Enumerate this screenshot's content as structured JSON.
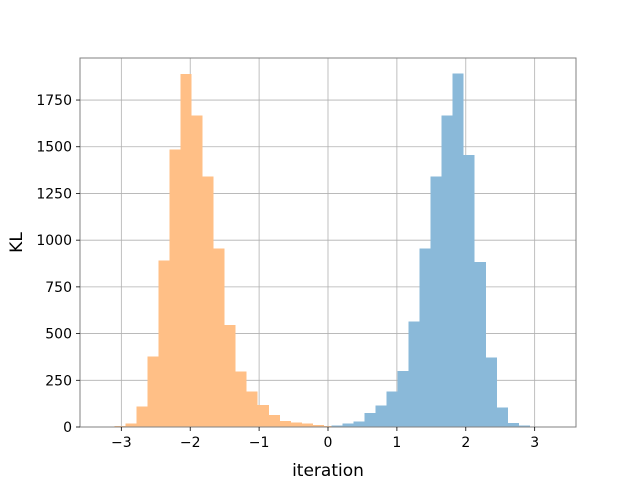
{
  "chart_data": {
    "type": "histogram",
    "title": "",
    "xlabel": "iteration",
    "ylabel": "KL",
    "xlim": [
      -3.6,
      3.6
    ],
    "ylim": [
      0,
      1975
    ],
    "xticks": [
      -3,
      -2,
      -1,
      0,
      1,
      2,
      3
    ],
    "xtick_labels": [
      "−3",
      "−2",
      "−1",
      "0",
      "1",
      "2",
      "3"
    ],
    "yticks": [
      0,
      250,
      500,
      750,
      1000,
      1250,
      1500,
      1750
    ],
    "ytick_labels": [
      "0",
      "250",
      "500",
      "750",
      "1000",
      "1250",
      "1500",
      "1750"
    ],
    "grid": true,
    "legend": "none",
    "series": [
      {
        "color": "#ffbf86",
        "bins": [
          {
            "x0": -3.1,
            "x1": -2.94,
            "count": 5
          },
          {
            "x0": -2.94,
            "x1": -2.78,
            "count": 18
          },
          {
            "x0": -2.78,
            "x1": -2.62,
            "count": 110
          },
          {
            "x0": -2.62,
            "x1": -2.46,
            "count": 378
          },
          {
            "x0": -2.46,
            "x1": -2.3,
            "count": 890
          },
          {
            "x0": -2.3,
            "x1": -2.14,
            "count": 1484
          },
          {
            "x0": -2.14,
            "x1": -1.98,
            "count": 1889
          },
          {
            "x0": -1.98,
            "x1": -1.82,
            "count": 1666
          },
          {
            "x0": -1.82,
            "x1": -1.66,
            "count": 1340
          },
          {
            "x0": -1.66,
            "x1": -1.5,
            "count": 955
          },
          {
            "x0": -1.5,
            "x1": -1.34,
            "count": 546
          },
          {
            "x0": -1.34,
            "x1": -1.18,
            "count": 298
          },
          {
            "x0": -1.18,
            "x1": -1.02,
            "count": 190
          },
          {
            "x0": -1.02,
            "x1": -0.86,
            "count": 117
          },
          {
            "x0": -0.86,
            "x1": -0.7,
            "count": 65
          },
          {
            "x0": -0.7,
            "x1": -0.54,
            "count": 32
          },
          {
            "x0": -0.54,
            "x1": -0.38,
            "count": 25
          },
          {
            "x0": -0.38,
            "x1": -0.22,
            "count": 18
          },
          {
            "x0": -0.22,
            "x1": -0.06,
            "count": 12
          },
          {
            "x0": -0.06,
            "x1": 0.1,
            "count": 6
          }
        ]
      },
      {
        "color": "#8ab9d9",
        "bins": [
          {
            "x0": 0.05,
            "x1": 0.21,
            "count": 8
          },
          {
            "x0": 0.21,
            "x1": 0.37,
            "count": 18
          },
          {
            "x0": 0.37,
            "x1": 0.53,
            "count": 30
          },
          {
            "x0": 0.53,
            "x1": 0.69,
            "count": 75
          },
          {
            "x0": 0.69,
            "x1": 0.85,
            "count": 115
          },
          {
            "x0": 0.85,
            "x1": 1.01,
            "count": 190
          },
          {
            "x0": 1.01,
            "x1": 1.17,
            "count": 300
          },
          {
            "x0": 1.17,
            "x1": 1.33,
            "count": 565
          },
          {
            "x0": 1.33,
            "x1": 1.49,
            "count": 955
          },
          {
            "x0": 1.49,
            "x1": 1.65,
            "count": 1340
          },
          {
            "x0": 1.65,
            "x1": 1.81,
            "count": 1666
          },
          {
            "x0": 1.81,
            "x1": 1.97,
            "count": 1893
          },
          {
            "x0": 1.97,
            "x1": 2.13,
            "count": 1456
          },
          {
            "x0": 2.13,
            "x1": 2.29,
            "count": 884
          },
          {
            "x0": 2.29,
            "x1": 2.45,
            "count": 372
          },
          {
            "x0": 2.45,
            "x1": 2.61,
            "count": 105
          },
          {
            "x0": 2.61,
            "x1": 2.77,
            "count": 22
          },
          {
            "x0": 2.77,
            "x1": 2.93,
            "count": 8
          }
        ]
      }
    ]
  }
}
